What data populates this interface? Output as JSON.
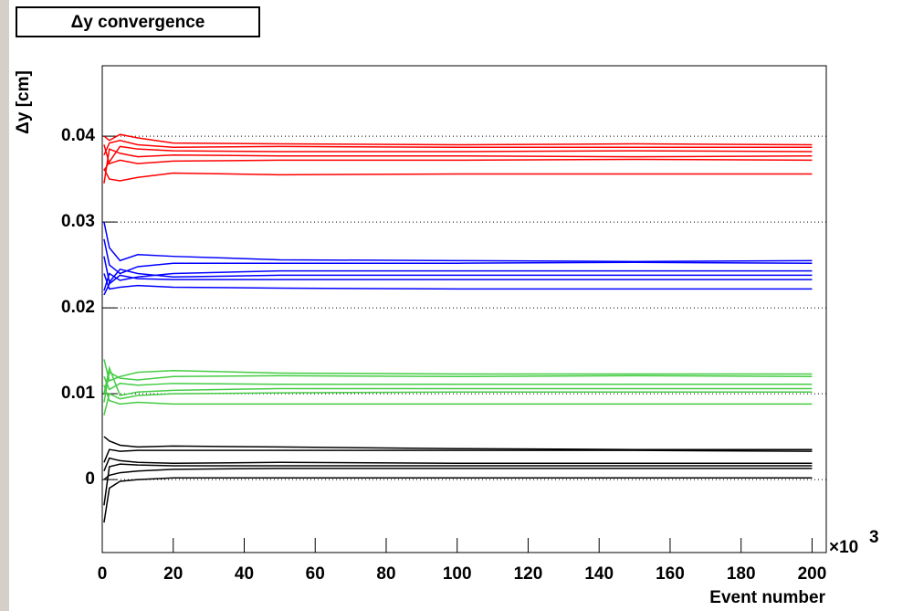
{
  "chart_data": {
    "type": "line",
    "title": "Δy convergence",
    "y_label": "Δy [cm]",
    "x_label": "Event number",
    "x_multiplier": "×10",
    "x_multiplier_exponent": "3",
    "x": [
      0.5,
      2,
      5,
      10,
      20,
      50,
      100,
      150,
      200
    ],
    "xlim": [
      0,
      204
    ],
    "xticks": [
      0,
      20,
      40,
      60,
      80,
      100,
      120,
      140,
      160,
      180,
      200
    ],
    "ylim": [
      -0.0085,
      0.0482
    ],
    "yticks": [
      0,
      0.01,
      0.02,
      0.03,
      0.04
    ],
    "grid": "y",
    "series": [
      {
        "color": "#ff0000",
        "values": [
          0.04,
          0.0395,
          0.0402,
          0.0398,
          0.0392,
          0.0391,
          0.039,
          0.0391,
          0.039
        ]
      },
      {
        "color": "#ff0000",
        "values": [
          0.0378,
          0.0392,
          0.0395,
          0.039,
          0.0387,
          0.0388,
          0.0387,
          0.0387,
          0.0387
        ]
      },
      {
        "color": "#ff0000",
        "values": [
          0.036,
          0.037,
          0.0388,
          0.0385,
          0.0383,
          0.0382,
          0.0382,
          0.0383,
          0.0382
        ]
      },
      {
        "color": "#ff0000",
        "values": [
          0.0345,
          0.0385,
          0.038,
          0.0376,
          0.0378,
          0.0377,
          0.0377,
          0.0376,
          0.0377
        ]
      },
      {
        "color": "#ff0000",
        "values": [
          0.039,
          0.0368,
          0.0372,
          0.0368,
          0.0371,
          0.0372,
          0.0372,
          0.0373,
          0.0372
        ]
      },
      {
        "color": "#ff0000",
        "values": [
          0.0362,
          0.035,
          0.0348,
          0.0352,
          0.0357,
          0.0355,
          0.0356,
          0.0356,
          0.0356
        ]
      },
      {
        "color": "#0000ff",
        "values": [
          0.03,
          0.027,
          0.0255,
          0.0262,
          0.026,
          0.0256,
          0.0255,
          0.0254,
          0.0255
        ]
      },
      {
        "color": "#0000ff",
        "values": [
          0.028,
          0.025,
          0.024,
          0.0248,
          0.0252,
          0.0252,
          0.0252,
          0.0253,
          0.0252
        ]
      },
      {
        "color": "#0000ff",
        "values": [
          0.022,
          0.024,
          0.0232,
          0.0236,
          0.024,
          0.0243,
          0.0243,
          0.0243,
          0.0243
        ]
      },
      {
        "color": "#0000ff",
        "values": [
          0.026,
          0.023,
          0.0245,
          0.024,
          0.0236,
          0.0238,
          0.0238,
          0.0238,
          0.0238
        ]
      },
      {
        "color": "#0000ff",
        "values": [
          0.0215,
          0.0228,
          0.0238,
          0.0234,
          0.0233,
          0.0233,
          0.0233,
          0.0233,
          0.0233
        ]
      },
      {
        "color": "#0000ff",
        "values": [
          0.024,
          0.0222,
          0.0224,
          0.0226,
          0.0224,
          0.0223,
          0.0222,
          0.0222,
          0.0222
        ]
      },
      {
        "color": "#44cc44",
        "values": [
          0.014,
          0.0115,
          0.012,
          0.0125,
          0.0127,
          0.0124,
          0.0123,
          0.0123,
          0.0123
        ]
      },
      {
        "color": "#44cc44",
        "values": [
          0.009,
          0.0125,
          0.0118,
          0.0116,
          0.012,
          0.0121,
          0.012,
          0.0121,
          0.012
        ]
      },
      {
        "color": "#44cc44",
        "values": [
          0.012,
          0.0105,
          0.0112,
          0.011,
          0.0112,
          0.0111,
          0.0111,
          0.0111,
          0.0111
        ]
      },
      {
        "color": "#44cc44",
        "values": [
          0.01,
          0.013,
          0.0098,
          0.0102,
          0.0104,
          0.0106,
          0.0106,
          0.0106,
          0.0106
        ]
      },
      {
        "color": "#44cc44",
        "values": [
          0.0075,
          0.01,
          0.0094,
          0.0098,
          0.01,
          0.0101,
          0.0102,
          0.0102,
          0.0102
        ]
      },
      {
        "color": "#44cc44",
        "values": [
          0.011,
          0.0092,
          0.0088,
          0.009,
          0.0088,
          0.0088,
          0.0088,
          0.0088,
          0.0088
        ]
      },
      {
        "color": "#000000",
        "values": [
          0.005,
          0.0045,
          0.004,
          0.0038,
          0.0039,
          0.0038,
          0.0036,
          0.0035,
          0.0035
        ]
      },
      {
        "color": "#000000",
        "values": [
          0.002,
          0.0035,
          0.0033,
          0.0034,
          0.0034,
          0.0034,
          0.0034,
          0.0034,
          0.0033
        ]
      },
      {
        "color": "#000000",
        "values": [
          0.001,
          0.0025,
          0.0022,
          0.002,
          0.0019,
          0.002,
          0.0019,
          0.0019,
          0.0019
        ]
      },
      {
        "color": "#000000",
        "values": [
          -0.003,
          0.0015,
          0.0018,
          0.0017,
          0.0016,
          0.0016,
          0.0016,
          0.0016,
          0.0016
        ]
      },
      {
        "color": "#000000",
        "values": [
          0.0,
          0.0005,
          0.0008,
          0.001,
          0.0012,
          0.0013,
          0.0013,
          0.0013,
          0.0013
        ]
      },
      {
        "color": "#000000",
        "values": [
          -0.005,
          -0.001,
          -0.0002,
          0.0,
          0.0002,
          0.0002,
          0.0002,
          0.0002,
          0.0002
        ]
      }
    ]
  }
}
